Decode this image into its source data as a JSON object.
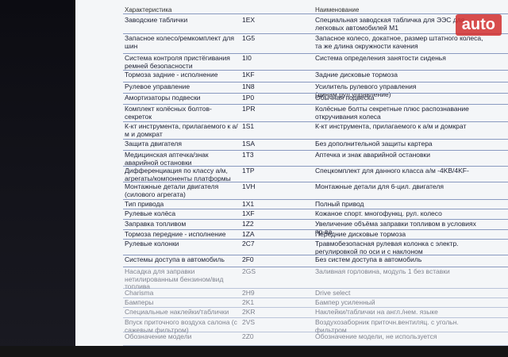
{
  "header": {
    "columns": [
      "Характеристика",
      "Наименование"
    ]
  },
  "table": {
    "rows": [
      [
        "Заводские таблички",
        "1EX",
        "Специальная заводская табличка для ЭЭС для легковых автомобилей М1"
      ],
      [
        "Запасное колесо/ремкомплект для шин",
        "1G5",
        "Запасное колесо, докатное, размер штатного колеса, та же длина окружности качения"
      ],
      [
        "Система контроля пристёгивания ремней безопасности",
        "1I0",
        "Система определения занятости сиденья"
      ],
      [
        "Тормоза задние - исполнение",
        "1KF",
        "Задние дисковые тормоза"
      ],
      [
        "Рулевое управление",
        "1N8",
        "Усилитель рулевого управления (динам.рул.управление)"
      ],
      [
        "Амортизаторы подвески",
        "1P0",
        "Обычная подвеска"
      ],
      [
        "Комплект колёсных болтов-секреток",
        "1PR",
        "Колёсные болты секретные плюс распознавание откручивания колеса"
      ],
      [
        "К-кт инструмента, прилагаемого к а/м и домкрат",
        "1S1",
        "К-кт инструмента, прилагаемого к а/м и домкрат"
      ],
      [
        "Защита двигателя",
        "1SA",
        "Без дополнительной защиты картера"
      ],
      [
        "Медицинская аптечка/знак аварийной остановки",
        "1T3",
        "Аптечка и знак аварийной остановки"
      ],
      [
        "Дифференциация по классу а/м, агрегаты/компоненты платформы",
        "1TP",
        "Спецкомплект для данного класса а/м -4KB/4KF-"
      ],
      [
        "Монтажные детали двигателя (силового агрегата)",
        "1VH",
        "Монтажные детали для 6-цил. двигателя"
      ],
      [
        "Тип привода",
        "1X1",
        "Полный привод"
      ],
      [
        "Рулевые колёса",
        "1XF",
        "Кожаное спорт. многофункц. рул. колесо"
      ],
      [
        "Заправка топливом",
        "1Z2",
        "Увеличение объёма заправки топливом в условиях пр-ва"
      ],
      [
        "Тормоза передние - исполнение",
        "1ZA",
        "Передние дисковые тормоза"
      ],
      [
        "Рулевые колонки",
        "2C7",
        "Травмобезопасная рулевая колонка с электр. регулировкой по оси и с наклоном"
      ],
      [
        "Системы доступа в автомобиль",
        "2F0",
        "Без систем доступа в автомобиль"
      ],
      [
        "Насадка для заправки нетилированным бензином/вид топлива",
        "2GS",
        "Заливная горловина, модуль 1 без вставки"
      ],
      [
        "Charisma",
        "2H9",
        "Drive select"
      ],
      [
        "Бамперы",
        "2K1",
        "Бампер усиленный"
      ],
      [
        "Специальные наклейки/таблички",
        "2KR",
        "Наклейки/таблички на англ./нем. языке"
      ],
      [
        "Впуск приточного воздуха салона (с сажевым фильтром)",
        "2VS",
        "Воздухозаборник приточн.вентиляц. с угольн. фильтром"
      ],
      [
        "Обозначение модели",
        "2Z0",
        "Обозначение модели, не используется"
      ]
    ]
  },
  "watermark": "auto"
}
